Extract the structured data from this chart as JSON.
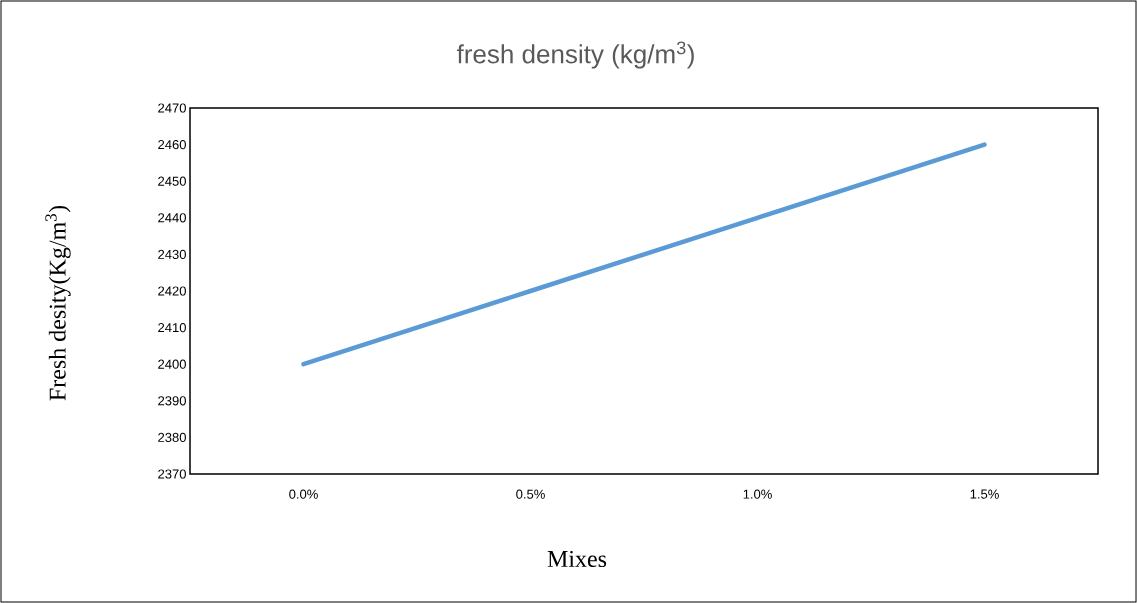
{
  "chart_data": {
    "type": "line",
    "title": "fresh density (kg/m$^{3}$)",
    "xlabel": "Mixes",
    "ylabel": "Fresh desity(Kg/m$^{3}$)",
    "categories": [
      "0.0%",
      "0.5%",
      "1.0%",
      "1.5%"
    ],
    "values": [
      2400,
      2420,
      2440,
      2460
    ],
    "color": "#5b9bd5",
    "ylim": [
      2370,
      2470
    ],
    "yticks": [
      2370,
      2380,
      2390,
      2400,
      2410,
      2420,
      2430,
      2440,
      2450,
      2460,
      2470
    ],
    "grid": false,
    "legend": false,
    "marker": "none",
    "line_style": "solid"
  }
}
